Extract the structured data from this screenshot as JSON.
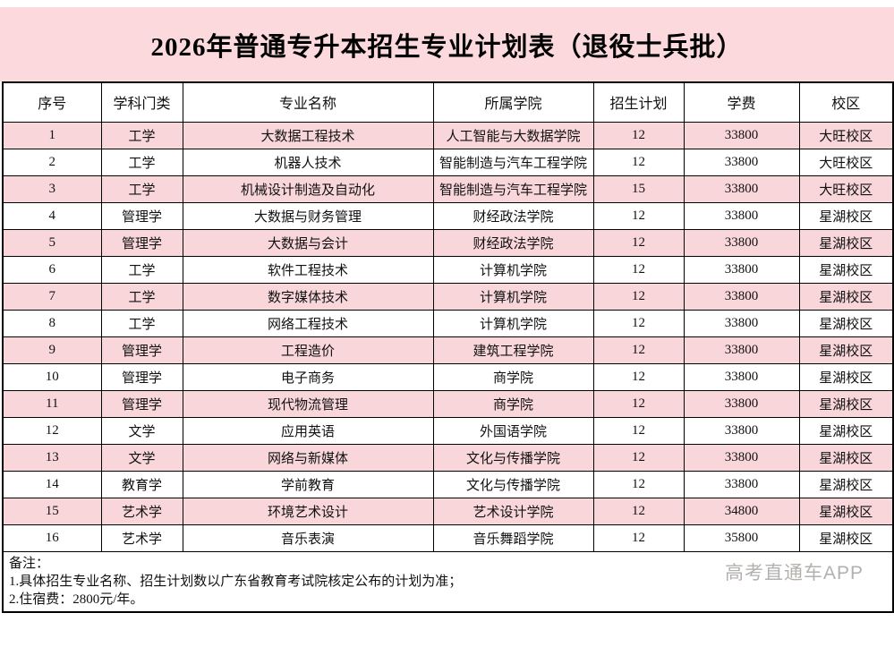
{
  "title": "2026年普通专升本招生专业计划表（退役士兵批）",
  "table": {
    "headers": [
      "序号",
      "学科门类",
      "专业名称",
      "所属学院",
      "招生计划",
      "学费",
      "校区"
    ],
    "rows": [
      [
        "1",
        "工学",
        "大数据工程技术",
        "人工智能与大数据学院",
        "12",
        "33800",
        "大旺校区"
      ],
      [
        "2",
        "工学",
        "机器人技术",
        "智能制造与汽车工程学院",
        "12",
        "33800",
        "大旺校区"
      ],
      [
        "3",
        "工学",
        "机械设计制造及自动化",
        "智能制造与汽车工程学院",
        "15",
        "33800",
        "大旺校区"
      ],
      [
        "4",
        "管理学",
        "大数据与财务管理",
        "财经政法学院",
        "12",
        "33800",
        "星湖校区"
      ],
      [
        "5",
        "管理学",
        "大数据与会计",
        "财经政法学院",
        "12",
        "33800",
        "星湖校区"
      ],
      [
        "6",
        "工学",
        "软件工程技术",
        "计算机学院",
        "12",
        "33800",
        "星湖校区"
      ],
      [
        "7",
        "工学",
        "数字媒体技术",
        "计算机学院",
        "12",
        "33800",
        "星湖校区"
      ],
      [
        "8",
        "工学",
        "网络工程技术",
        "计算机学院",
        "12",
        "33800",
        "星湖校区"
      ],
      [
        "9",
        "管理学",
        "工程造价",
        "建筑工程学院",
        "12",
        "33800",
        "星湖校区"
      ],
      [
        "10",
        "管理学",
        "电子商务",
        "商学院",
        "12",
        "33800",
        "星湖校区"
      ],
      [
        "11",
        "管理学",
        "现代物流管理",
        "商学院",
        "12",
        "33800",
        "星湖校区"
      ],
      [
        "12",
        "文学",
        "应用英语",
        "外国语学院",
        "12",
        "33800",
        "星湖校区"
      ],
      [
        "13",
        "文学",
        "网络与新媒体",
        "文化与传播学院",
        "12",
        "33800",
        "星湖校区"
      ],
      [
        "14",
        "教育学",
        "学前教育",
        "文化与传播学院",
        "12",
        "33800",
        "星湖校区"
      ],
      [
        "15",
        "艺术学",
        "环境艺术设计",
        "艺术设计学院",
        "12",
        "34800",
        "星湖校区"
      ],
      [
        "16",
        "艺术学",
        "音乐表演",
        "音乐舞蹈学院",
        "12",
        "35800",
        "星湖校区"
      ]
    ]
  },
  "notes": {
    "label": "备注：",
    "items": [
      "1.具体招生专业名称、招生计划数以广东省教育考试院核定公布的计划为准；",
      "2.住宿费：2800元/年。"
    ]
  },
  "watermark": "高考直通车APP",
  "colors": {
    "banner_pink": "#fbd9dd",
    "row_pink": "#f8d6da",
    "border": "#000000",
    "watermark_gray": "#b3b0ad"
  }
}
